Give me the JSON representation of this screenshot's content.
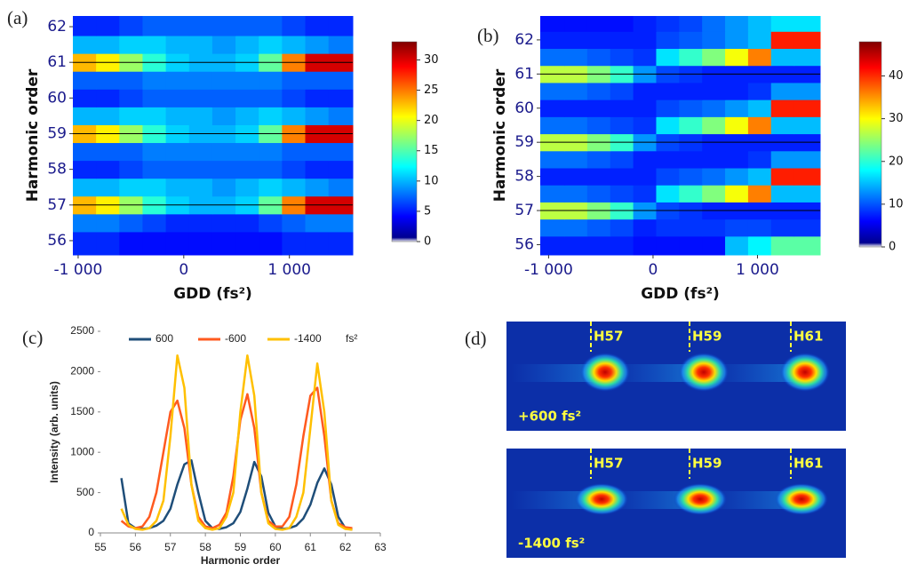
{
  "panels": [
    "(a)",
    "(b)",
    "(c)",
    "(d)"
  ],
  "chart_data": [
    {
      "type": "heatmap",
      "xlabel": "GDD (fs²)",
      "ylabel": "Harmonic order",
      "x": [
        -940,
        -720,
        -500,
        -280,
        -60,
        160,
        380,
        600,
        820,
        1040,
        1260,
        1480
      ],
      "y": [
        56,
        56.5,
        57,
        57.5,
        58,
        58.5,
        59,
        59.5,
        60,
        60.5,
        61,
        61.5,
        62
      ],
      "z": [
        [
          3,
          3,
          2,
          2,
          2,
          2,
          2,
          2,
          2,
          3,
          3,
          3
        ],
        [
          6,
          6,
          5,
          4,
          3,
          3,
          3,
          3,
          4,
          5,
          6,
          6
        ],
        [
          22,
          20,
          16,
          12,
          9,
          8,
          8,
          9,
          14,
          24,
          30,
          30
        ],
        [
          8,
          8,
          9,
          9,
          8,
          8,
          7,
          8,
          9,
          8,
          7,
          6
        ],
        [
          3,
          3,
          4,
          5,
          5,
          5,
          5,
          5,
          5,
          4,
          3,
          3
        ],
        [
          5,
          5,
          5,
          6,
          6,
          6,
          6,
          6,
          6,
          5,
          5,
          5
        ],
        [
          22,
          20,
          16,
          12,
          9,
          8,
          8,
          9,
          14,
          24,
          30,
          30
        ],
        [
          8,
          8,
          9,
          9,
          8,
          8,
          7,
          8,
          9,
          8,
          7,
          6
        ],
        [
          3,
          3,
          4,
          5,
          5,
          5,
          5,
          5,
          5,
          4,
          3,
          3
        ],
        [
          5,
          5,
          5,
          6,
          6,
          6,
          6,
          6,
          6,
          5,
          5,
          5
        ],
        [
          22,
          20,
          16,
          12,
          9,
          8,
          8,
          9,
          14,
          24,
          30,
          30
        ],
        [
          8,
          8,
          9,
          9,
          8,
          8,
          7,
          8,
          9,
          8,
          7,
          6
        ],
        [
          3,
          3,
          4,
          5,
          5,
          5,
          5,
          5,
          5,
          4,
          3,
          3
        ]
      ],
      "xlim": [
        -1050,
        1600
      ],
      "ylim": [
        55.6,
        62.3
      ],
      "xticks": [
        {
          "value": -1000,
          "label": "-1 000"
        },
        0,
        {
          "value": 1000,
          "label": "1 000"
        }
      ],
      "yticks": [
        56,
        57,
        58,
        59,
        60,
        61,
        62
      ],
      "hlines": [
        57,
        59,
        61
      ],
      "clim": [
        0,
        33
      ],
      "cticks": [
        0,
        5,
        10,
        15,
        20,
        25,
        30
      ],
      "colormap": "jet"
    },
    {
      "type": "heatmap",
      "xlabel": "GDD (fs²)",
      "ylabel": "Harmonic order",
      "x": [
        -960,
        -740,
        -520,
        -300,
        -80,
        140,
        360,
        580,
        800,
        1020,
        1240,
        1460
      ],
      "y": [
        56,
        56.5,
        57,
        57.5,
        58,
        58.5,
        59,
        59.5,
        60,
        60.5,
        61,
        61.5,
        62,
        62.5
      ],
      "z": [
        [
          4,
          4,
          4,
          4,
          3,
          3,
          3,
          3,
          12,
          15,
          20,
          20
        ],
        [
          8,
          8,
          7,
          6,
          4,
          5,
          5,
          5,
          6,
          6,
          5,
          5
        ],
        [
          25,
          25,
          22,
          18,
          10,
          6,
          5,
          4,
          4,
          4,
          4,
          4
        ],
        [
          8,
          8,
          7,
          6,
          5,
          14,
          18,
          22,
          28,
          35,
          12,
          12
        ],
        [
          4,
          4,
          4,
          4,
          4,
          6,
          7,
          8,
          10,
          12,
          40,
          40
        ],
        [
          8,
          8,
          7,
          6,
          4,
          4,
          4,
          4,
          4,
          5,
          10,
          10
        ],
        [
          25,
          25,
          22,
          18,
          10,
          6,
          5,
          4,
          4,
          4,
          4,
          4
        ],
        [
          8,
          8,
          7,
          6,
          5,
          14,
          18,
          22,
          28,
          35,
          12,
          12
        ],
        [
          4,
          4,
          4,
          4,
          4,
          6,
          7,
          8,
          10,
          12,
          40,
          40
        ],
        [
          8,
          8,
          7,
          6,
          4,
          4,
          4,
          4,
          4,
          5,
          10,
          10
        ],
        [
          25,
          25,
          22,
          18,
          10,
          6,
          5,
          4,
          4,
          4,
          4,
          4
        ],
        [
          8,
          8,
          7,
          6,
          5,
          14,
          18,
          22,
          28,
          35,
          12,
          12
        ],
        [
          4,
          4,
          4,
          4,
          4,
          6,
          7,
          8,
          10,
          12,
          40,
          40
        ],
        [
          3,
          3,
          3,
          3,
          4,
          5,
          6,
          8,
          10,
          12,
          14,
          14
        ]
      ],
      "xlim": [
        -1080,
        1600
      ],
      "ylim": [
        55.7,
        62.7
      ],
      "xticks": [
        {
          "value": -1000,
          "label": "-1 000"
        },
        0,
        {
          "value": 1000,
          "label": "1 000"
        }
      ],
      "yticks": [
        56,
        57,
        58,
        59,
        60,
        61,
        62
      ],
      "hlines": [
        57,
        59,
        61
      ],
      "clim": [
        0,
        48
      ],
      "cticks": [
        0,
        10,
        20,
        30,
        40
      ],
      "colormap": "jet"
    },
    {
      "type": "line",
      "xlabel": "Harmonic order",
      "ylabel": "Intensity (arb. units)",
      "legend_unit": "fs²",
      "x": [
        55.6,
        55.8,
        56.0,
        56.2,
        56.4,
        56.6,
        56.8,
        57.0,
        57.2,
        57.4,
        57.6,
        57.8,
        58.0,
        58.2,
        58.4,
        58.6,
        58.8,
        59.0,
        59.2,
        59.4,
        59.6,
        59.8,
        60.0,
        60.2,
        60.4,
        60.6,
        60.8,
        61.0,
        61.2,
        61.4,
        61.6,
        61.8,
        62.0,
        62.2
      ],
      "series": [
        {
          "name": "600",
          "color": "#1f4e79",
          "values": [
            680,
            120,
            60,
            50,
            60,
            90,
            150,
            300,
            600,
            850,
            900,
            500,
            150,
            60,
            50,
            70,
            120,
            260,
            550,
            880,
            700,
            250,
            80,
            50,
            60,
            90,
            180,
            350,
            620,
            800,
            600,
            200,
            60,
            40
          ]
        },
        {
          "name": "-600",
          "color": "#ff5a1f",
          "values": [
            150,
            80,
            60,
            80,
            200,
            500,
            1000,
            1500,
            1640,
            1300,
            600,
            200,
            80,
            60,
            100,
            250,
            700,
            1400,
            1720,
            1300,
            500,
            150,
            80,
            80,
            200,
            600,
            1200,
            1700,
            1800,
            1200,
            400,
            120,
            70,
            60
          ]
        },
        {
          "name": "-1400",
          "color": "#ffc000",
          "values": [
            300,
            100,
            50,
            40,
            60,
            150,
            400,
            1200,
            2200,
            1800,
            600,
            150,
            60,
            40,
            60,
            200,
            500,
            1500,
            2200,
            1700,
            500,
            120,
            50,
            40,
            60,
            200,
            500,
            1300,
            2100,
            1500,
            400,
            100,
            50,
            40
          ]
        }
      ],
      "xlim": [
        55,
        63
      ],
      "ylim": [
        0,
        2500
      ],
      "xticks": [
        55,
        56,
        57,
        58,
        59,
        60,
        61,
        62,
        63
      ],
      "yticks": [
        0,
        500,
        1000,
        1500,
        2000,
        2500
      ],
      "legend": "top"
    }
  ],
  "images": [
    {
      "label": "+600 fs²",
      "harmonics": [
        "H57",
        "H59",
        "H61"
      ]
    },
    {
      "label": "-1400 fs²",
      "harmonics": [
        "H57",
        "H59",
        "H61"
      ]
    }
  ]
}
